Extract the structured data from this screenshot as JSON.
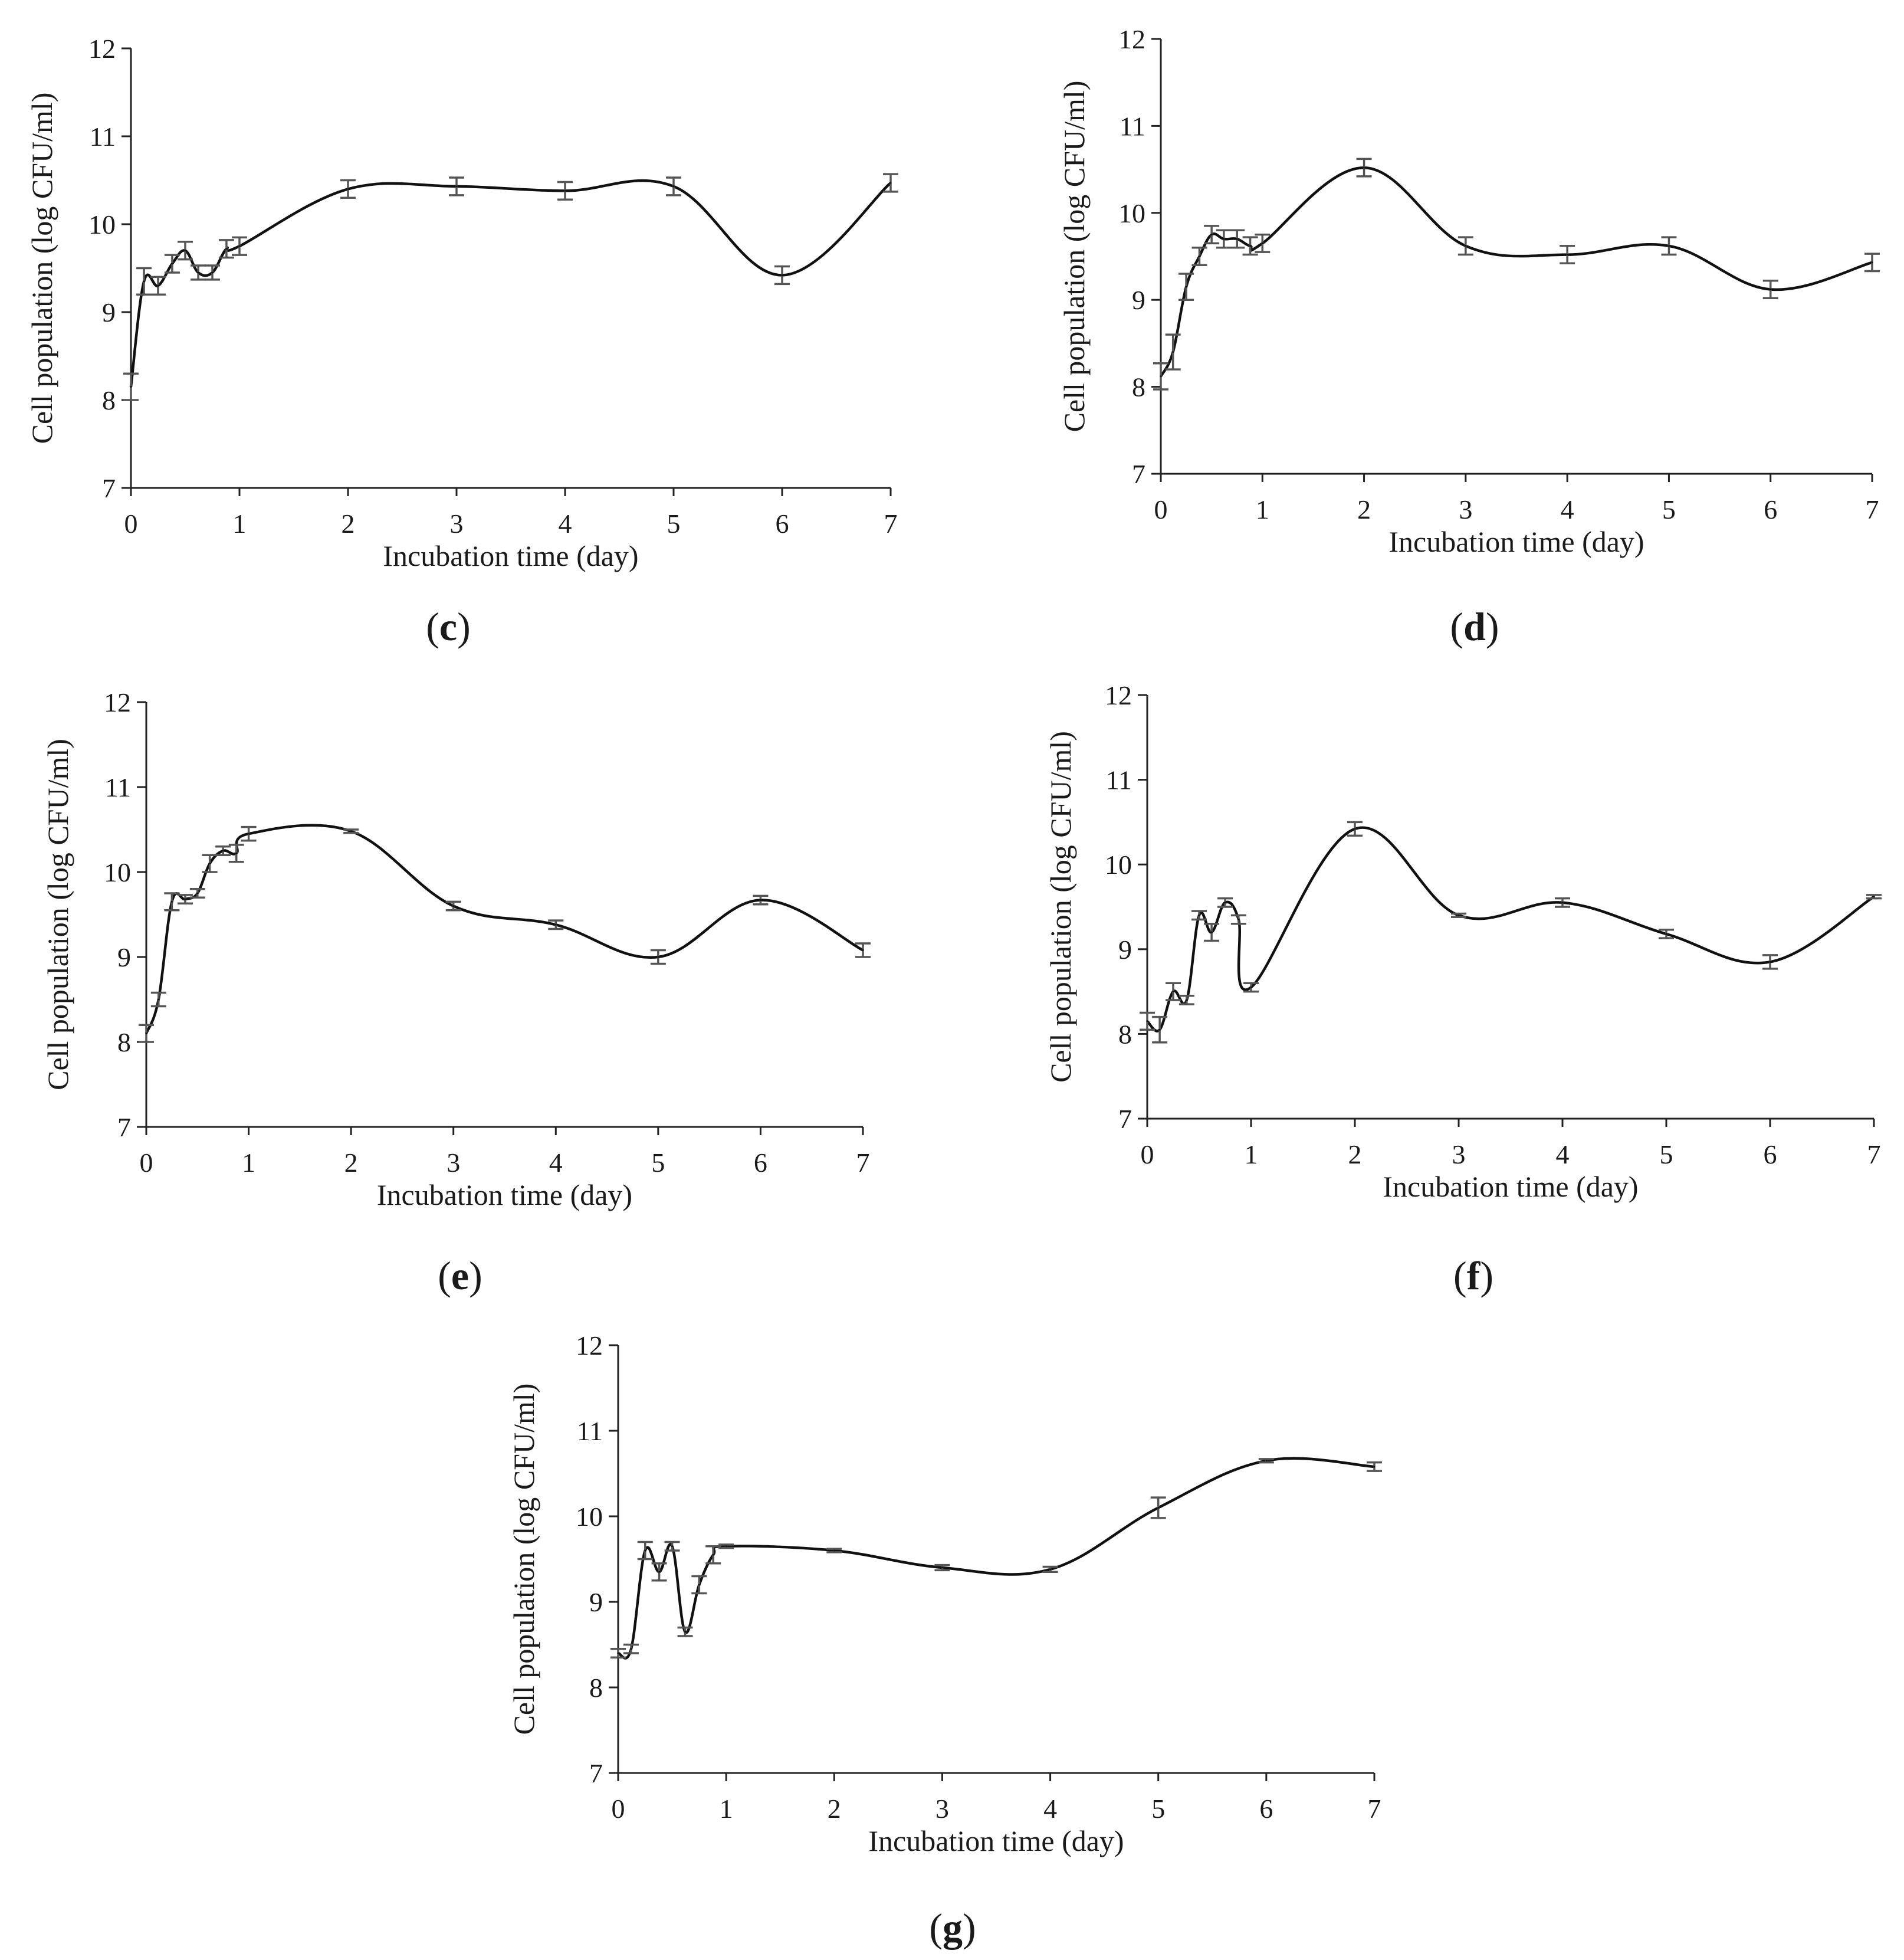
{
  "figure": {
    "panels": [
      "c",
      "d",
      "e",
      "f",
      "g"
    ]
  },
  "chart_data": [
    {
      "id": "c",
      "panel_label": "c",
      "type": "line",
      "xlabel": "Incubation time (day)",
      "ylabel": "Cell population (log CFU/ml)",
      "xlim": [
        0,
        7
      ],
      "ylim": [
        7,
        12
      ],
      "xticks": [
        "0",
        "1",
        "2",
        "3",
        "4",
        "5",
        "6",
        "7"
      ],
      "yticks": [
        "7",
        "8",
        "9",
        "10",
        "11",
        "12"
      ],
      "grid": false,
      "legend": "none",
      "series": [
        {
          "name": "Cell population",
          "x": [
            0,
            0.12,
            0.25,
            0.38,
            0.5,
            0.62,
            0.75,
            0.88,
            1,
            2,
            3,
            4,
            5,
            6,
            7
          ],
          "y": [
            8.15,
            9.35,
            9.3,
            9.55,
            9.7,
            9.45,
            9.45,
            9.72,
            9.75,
            10.4,
            10.43,
            10.38,
            10.43,
            9.42,
            10.47
          ],
          "error": [
            0.15,
            0.15,
            0.1,
            0.1,
            0.1,
            0.08,
            0.08,
            0.1,
            0.1,
            0.1,
            0.1,
            0.1,
            0.1,
            0.1,
            0.1
          ]
        }
      ]
    },
    {
      "id": "d",
      "panel_label": "d",
      "type": "line",
      "xlabel": "Incubation time (day)",
      "ylabel": "Cell population (log CFU/ml)",
      "xlim": [
        0,
        7
      ],
      "ylim": [
        7,
        12
      ],
      "xticks": [
        "0",
        "1",
        "2",
        "3",
        "4",
        "5",
        "6",
        "7"
      ],
      "yticks": [
        "7",
        "8",
        "9",
        "10",
        "11",
        "12"
      ],
      "grid": false,
      "legend": "none",
      "series": [
        {
          "name": "Cell population",
          "x": [
            0,
            0.12,
            0.25,
            0.38,
            0.5,
            0.62,
            0.75,
            0.88,
            1,
            2,
            3,
            4,
            5,
            6,
            7
          ],
          "y": [
            8.12,
            8.4,
            9.15,
            9.5,
            9.75,
            9.7,
            9.7,
            9.62,
            9.65,
            10.52,
            9.62,
            9.52,
            9.62,
            9.12,
            9.43
          ],
          "error": [
            0.15,
            0.2,
            0.15,
            0.1,
            0.1,
            0.1,
            0.1,
            0.1,
            0.1,
            0.1,
            0.1,
            0.1,
            0.1,
            0.1,
            0.1
          ]
        }
      ]
    },
    {
      "id": "e",
      "panel_label": "e",
      "type": "line",
      "xlabel": "Incubation time (day)",
      "ylabel": "Cell population (log CFU/ml)",
      "xlim": [
        0,
        7
      ],
      "ylim": [
        7,
        12
      ],
      "xticks": [
        "0",
        "1",
        "2",
        "3",
        "4",
        "5",
        "6",
        "7"
      ],
      "yticks": [
        "7",
        "8",
        "9",
        "10",
        "11",
        "12"
      ],
      "grid": false,
      "legend": "none",
      "series": [
        {
          "name": "Cell population",
          "x": [
            0,
            0.12,
            0.25,
            0.38,
            0.5,
            0.62,
            0.75,
            0.88,
            1,
            2,
            3,
            4,
            5,
            6,
            7
          ],
          "y": [
            8.1,
            8.5,
            9.65,
            9.68,
            9.75,
            10.1,
            10.25,
            10.22,
            10.45,
            10.48,
            9.6,
            9.38,
            9.0,
            9.67,
            9.08
          ],
          "error": [
            0.1,
            0.08,
            0.1,
            0.05,
            0.05,
            0.1,
            0.05,
            0.1,
            0.08,
            0.02,
            0.05,
            0.05,
            0.08,
            0.05,
            0.08
          ]
        }
      ]
    },
    {
      "id": "f",
      "panel_label": "f",
      "type": "line",
      "xlabel": "Incubation time (day)",
      "ylabel": "Cell population (log CFU/ml)",
      "xlim": [
        0,
        7
      ],
      "ylim": [
        7,
        12
      ],
      "xticks": [
        "0",
        "1",
        "2",
        "3",
        "4",
        "5",
        "6",
        "7"
      ],
      "yticks": [
        "7",
        "8",
        "9",
        "10",
        "11",
        "12"
      ],
      "grid": false,
      "legend": "none",
      "series": [
        {
          "name": "Cell population",
          "x": [
            0,
            0.12,
            0.25,
            0.38,
            0.5,
            0.62,
            0.75,
            0.88,
            1,
            2,
            3,
            4,
            5,
            6,
            7
          ],
          "y": [
            8.15,
            8.05,
            8.5,
            8.4,
            9.4,
            9.2,
            9.55,
            9.35,
            8.55,
            10.42,
            9.4,
            9.55,
            9.18,
            8.85,
            9.62
          ],
          "error": [
            0.1,
            0.15,
            0.1,
            0.05,
            0.05,
            0.1,
            0.05,
            0.05,
            0.05,
            0.08,
            0.02,
            0.05,
            0.05,
            0.08,
            0.02
          ]
        }
      ]
    },
    {
      "id": "g",
      "panel_label": "g",
      "type": "line",
      "xlabel": "Incubation time (day)",
      "ylabel": "Cell population (log CFU/ml)",
      "xlim": [
        0,
        7
      ],
      "ylim": [
        7,
        12
      ],
      "xticks": [
        "0",
        "1",
        "2",
        "3",
        "4",
        "5",
        "6",
        "7"
      ],
      "yticks": [
        "7",
        "8",
        "9",
        "10",
        "11",
        "12"
      ],
      "grid": false,
      "legend": "none",
      "series": [
        {
          "name": "Cell population",
          "x": [
            0,
            0.12,
            0.25,
            0.38,
            0.5,
            0.62,
            0.75,
            0.88,
            1,
            2,
            3,
            4,
            5,
            6,
            7
          ],
          "y": [
            8.4,
            8.45,
            9.6,
            9.35,
            9.65,
            8.65,
            9.2,
            9.55,
            9.65,
            9.6,
            9.4,
            9.38,
            10.1,
            10.65,
            10.58
          ],
          "error": [
            0.05,
            0.05,
            0.1,
            0.1,
            0.05,
            0.05,
            0.1,
            0.1,
            0.02,
            0.02,
            0.03,
            0.03,
            0.12,
            0.02,
            0.05
          ]
        }
      ]
    }
  ]
}
